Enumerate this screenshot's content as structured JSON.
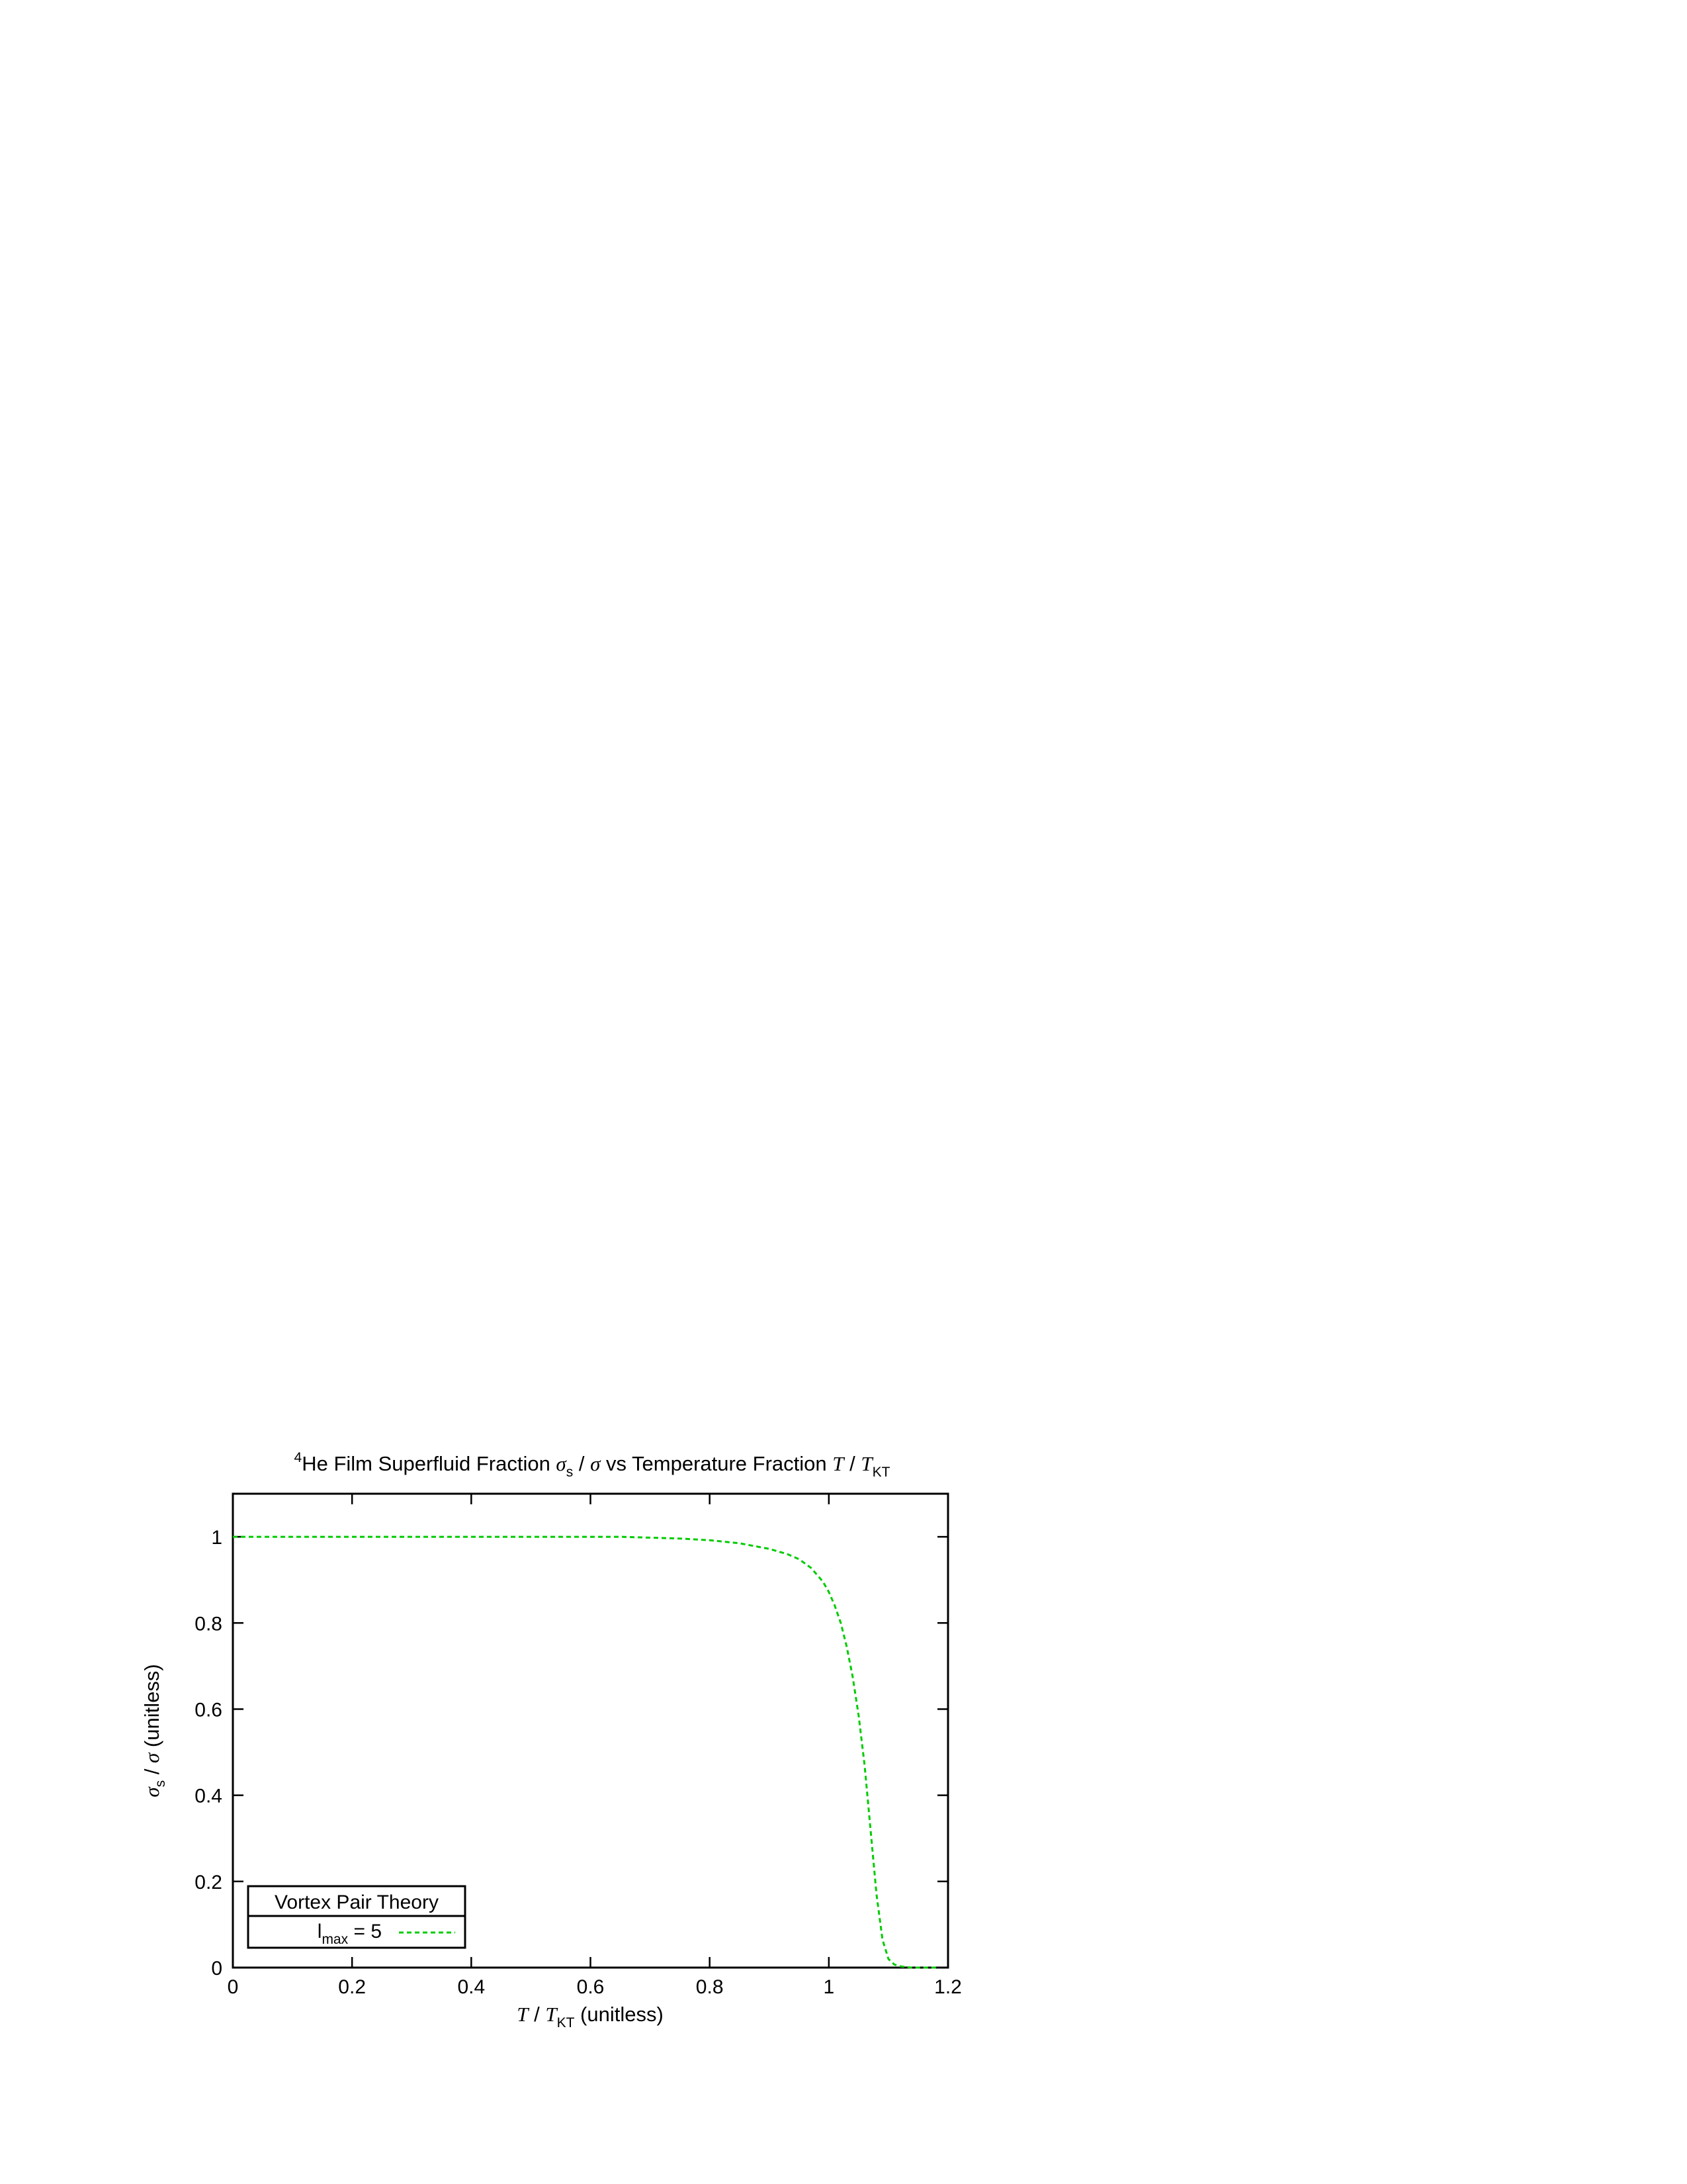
{
  "chart_data": {
    "type": "line",
    "title": {
      "sup": "4",
      "part1": "He Film Superfluid Fraction ",
      "sigma": "σ",
      "sigma_sub": "s",
      "part2": " / ",
      "sigma2": "σ",
      "part3": " vs Temperature Fraction ",
      "T": "T",
      "part4": " / ",
      "T2": "T",
      "T2_sub": "KT"
    },
    "xlabel": {
      "T": "T",
      "slash": " / ",
      "T2": "T",
      "sub": "KT",
      "unit": " (unitless)"
    },
    "ylabel": {
      "sigma": "σ",
      "sub": "s",
      "slash": " / ",
      "sigma2": "σ",
      "unit": " (unitless)"
    },
    "xlim": [
      0,
      1.2
    ],
    "ylim": [
      0,
      1.1
    ],
    "x_ticks": [
      "0",
      "0.2",
      "0.4",
      "0.6",
      "0.8",
      "1",
      "1.2"
    ],
    "y_ticks": [
      "0",
      "0.2",
      "0.4",
      "0.6",
      "0.8",
      "1"
    ],
    "grid": false,
    "legend": {
      "placement": "bottom-left",
      "title": "Vortex Pair Theory",
      "entries": [
        {
          "label_main": "l",
          "label_sub": "max",
          "label_rest": " = 5",
          "color": "#00cc00",
          "dash": "dashed"
        }
      ]
    },
    "series": [
      {
        "name": "lmax = 5",
        "color": "#00cc00",
        "style": "dashed",
        "x": [
          0,
          0.1,
          0.2,
          0.3,
          0.4,
          0.5,
          0.6,
          0.65,
          0.7,
          0.75,
          0.8,
          0.85,
          0.9,
          0.93,
          0.95,
          0.97,
          0.99,
          1.0,
          1.01,
          1.02,
          1.03,
          1.04,
          1.05,
          1.06,
          1.07,
          1.08,
          1.09,
          1.1,
          1.11,
          1.12,
          1.13,
          1.14,
          1.15,
          1.16,
          1.17,
          1.18
        ],
        "y": [
          1.0,
          1.0,
          1.0,
          1.0,
          1.0,
          1.0,
          1.0,
          1.0,
          0.998,
          0.996,
          0.992,
          0.985,
          0.972,
          0.96,
          0.948,
          0.928,
          0.896,
          0.872,
          0.84,
          0.8,
          0.745,
          0.675,
          0.585,
          0.47,
          0.32,
          0.17,
          0.065,
          0.02,
          0.007,
          0.003,
          0.001,
          0,
          0,
          0,
          0,
          0
        ]
      }
    ]
  }
}
